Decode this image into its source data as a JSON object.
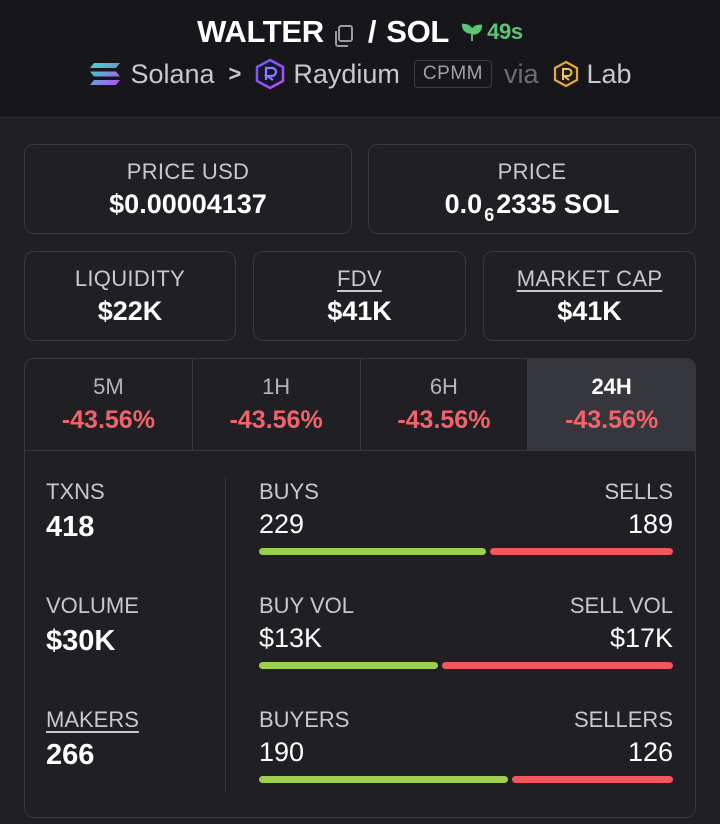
{
  "header": {
    "token": "WALTER",
    "separator": "/",
    "quote": "SOL",
    "age": "49s",
    "chain": "Solana",
    "dex": "Raydium",
    "pool_type": "CPMM",
    "via": "via",
    "launchpad": "Lab"
  },
  "price_usd": {
    "label": "PRICE USD",
    "value": "$0.00004137"
  },
  "price_native": {
    "label": "PRICE",
    "prefix": "0.0",
    "zeros": "6",
    "digits": "2335",
    "unit": "SOL"
  },
  "liquidity": {
    "label": "LIQUIDITY",
    "value": "$22K"
  },
  "fdv": {
    "label": "FDV",
    "value": "$41K"
  },
  "mcap": {
    "label": "MARKET CAP",
    "value": "$41K"
  },
  "tabs": [
    {
      "label": "5M",
      "value": "-43.56%"
    },
    {
      "label": "1H",
      "value": "-43.56%"
    },
    {
      "label": "6H",
      "value": "-43.56%"
    },
    {
      "label": "24H",
      "value": "-43.56%",
      "active": true
    }
  ],
  "stats": {
    "txns": {
      "label": "TXNS",
      "value": "418"
    },
    "volume": {
      "label": "VOLUME",
      "value": "$30K"
    },
    "makers": {
      "label": "MAKERS",
      "value": "266"
    },
    "buys": {
      "label": "BUYS",
      "value": "229"
    },
    "sells": {
      "label": "SELLS",
      "value": "189"
    },
    "buy_vol": {
      "label": "BUY VOL",
      "value": "$13K"
    },
    "sell_vol": {
      "label": "SELL VOL",
      "value": "$17K"
    },
    "buyers": {
      "label": "BUYERS",
      "value": "190"
    },
    "sellers": {
      "label": "SELLERS",
      "value": "126"
    }
  },
  "ratios": {
    "buys_share": 0.548,
    "buy_vol_share": 0.433,
    "buyers_share": 0.601
  },
  "colors": {
    "positive": "#9bcf4d",
    "negative": "#f2565e",
    "age": "#5ac777",
    "change": "#f2636b"
  },
  "icons": [
    "copy-icon",
    "sprout-icon",
    "solana-icon",
    "chevron-right-icon",
    "raydium-icon",
    "launchpad-icon"
  ]
}
